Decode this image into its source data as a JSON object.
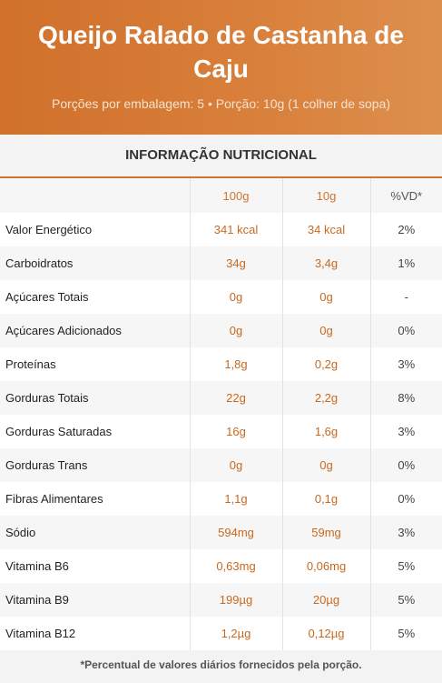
{
  "header": {
    "title": "Queijo Ralado de Castanha de Caju",
    "subtitle": "Porções por embalagem: 5 • Porção: 10g (1 colher de sopa)"
  },
  "section_title": "INFORMAÇÃO NUTRICIONAL",
  "columns": [
    "",
    "100g",
    "10g",
    "%VD*"
  ],
  "rows": [
    {
      "label": "Valor Energético",
      "per100": "341 kcal",
      "perPortion": "34 kcal",
      "vd": "2%"
    },
    {
      "label": "Carboidratos",
      "per100": "34g",
      "perPortion": "3,4g",
      "vd": "1%"
    },
    {
      "label": "Açúcares Totais",
      "per100": "0g",
      "perPortion": "0g",
      "vd": "-"
    },
    {
      "label": "Açúcares Adicionados",
      "per100": "0g",
      "perPortion": "0g",
      "vd": "0%"
    },
    {
      "label": "Proteínas",
      "per100": "1,8g",
      "perPortion": "0,2g",
      "vd": "3%"
    },
    {
      "label": "Gorduras Totais",
      "per100": "22g",
      "perPortion": "2,2g",
      "vd": "8%"
    },
    {
      "label": "Gorduras Saturadas",
      "per100": "16g",
      "perPortion": "1,6g",
      "vd": "3%"
    },
    {
      "label": "Gorduras Trans",
      "per100": "0g",
      "perPortion": "0g",
      "vd": "0%"
    },
    {
      "label": "Fibras Alimentares",
      "per100": "1,1g",
      "perPortion": "0,1g",
      "vd": "0%"
    },
    {
      "label": "Sódio",
      "per100": "594mg",
      "perPortion": "59mg",
      "vd": "3%"
    },
    {
      "label": "Vitamina B6",
      "per100": "0,63mg",
      "perPortion": "0,06mg",
      "vd": "5%"
    },
    {
      "label": "Vitamina B9",
      "per100": "199µg",
      "perPortion": "20µg",
      "vd": "5%"
    },
    {
      "label": "Vitamina B12",
      "per100": "1,2µg",
      "perPortion": "0,12µg",
      "vd": "5%"
    }
  ],
  "footnote": "*Percentual de valores diários fornecidos pela porção.",
  "colors": {
    "accent": "#d07430",
    "header_start": "#d0702b",
    "header_end": "#dd8f4e"
  }
}
